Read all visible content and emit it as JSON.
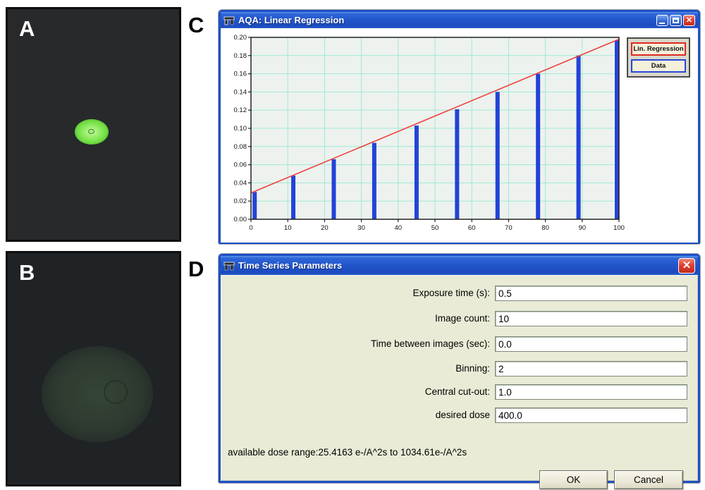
{
  "panels": {
    "a_label": "A",
    "b_label": "B",
    "c_label": "C",
    "d_label": "D"
  },
  "regression_window": {
    "title": "AQA: Linear Regression",
    "icons": {
      "app": "tool-window-icon",
      "minimize": "minimize-icon",
      "maximize": "maximize-icon",
      "close": "✕"
    },
    "legend": {
      "items": [
        {
          "label": "Lin. Regression",
          "border_color": "#e02820"
        },
        {
          "label": "Data",
          "border_color": "#2848d8"
        }
      ]
    }
  },
  "chart_data": {
    "type": "bar",
    "title": "",
    "xlabel": "",
    "ylabel": "",
    "xlim": [
      0,
      100
    ],
    "ylim": [
      0,
      0.2
    ],
    "x_ticks": [
      0,
      10,
      20,
      30,
      40,
      50,
      60,
      70,
      80,
      90,
      100
    ],
    "y_ticks": [
      "0.00",
      "0.02",
      "0.04",
      "0.06",
      "0.08",
      "0.10",
      "0.12",
      "0.14",
      "0.16",
      "0.18",
      "0.20"
    ],
    "grid": true,
    "legend_position": "outside-right",
    "bars": {
      "name": "Data",
      "x": [
        1,
        11.5,
        22.5,
        33.5,
        45,
        56,
        67,
        78,
        89,
        100
      ],
      "values": [
        0.03,
        0.048,
        0.066,
        0.084,
        0.103,
        0.121,
        0.14,
        0.16,
        0.18,
        0.197
      ]
    },
    "regression_line": {
      "name": "Lin. Regression",
      "x": [
        0,
        100
      ],
      "y": [
        0.029,
        0.198
      ]
    },
    "colors": {
      "bar": "#2343d6",
      "line": "#ee4040",
      "plot_bg": "#edf2ee",
      "grid": "#9fe9d5",
      "axis": "#222222"
    }
  },
  "dialog": {
    "title": "Time Series Parameters",
    "close_icon": "✕",
    "fields": [
      {
        "label": "Exposure time (s):",
        "value": "0.5"
      },
      {
        "label": "Image count:",
        "value": "10"
      },
      {
        "label": "Time between images (sec):",
        "value": "0.0"
      },
      {
        "label": "Binning:",
        "value": "2"
      },
      {
        "label": "Central cut-out:",
        "value": "1.0"
      },
      {
        "label": "desired dose",
        "value": "400.0"
      }
    ],
    "info_text": "available dose range:25.4163 e-/A^2s to 1034.61e-/A^2s",
    "ok_label": "OK",
    "cancel_label": "Cancel"
  }
}
